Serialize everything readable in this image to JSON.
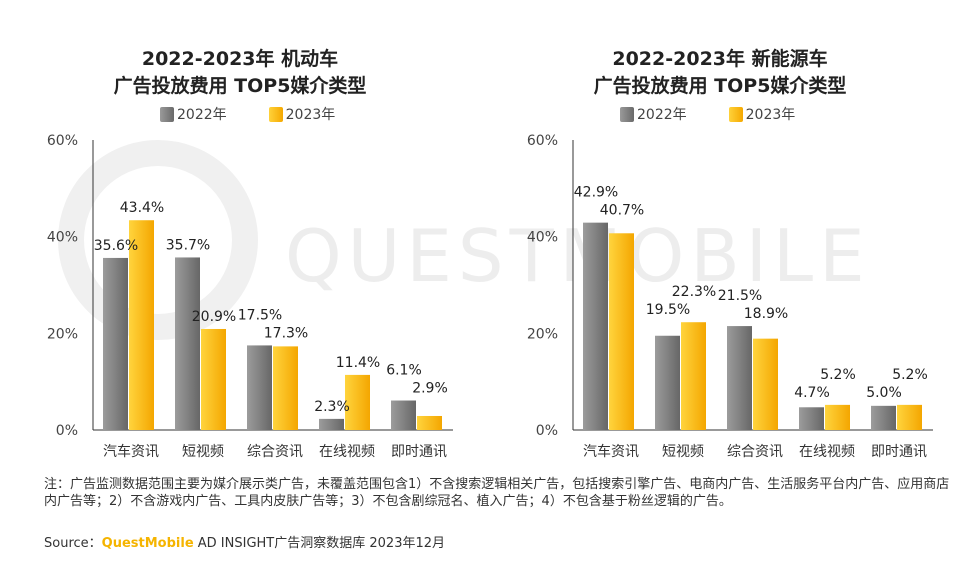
{
  "watermark": "QUESTMOBILE",
  "colors": {
    "y2022": "#7a7a7a",
    "y2023": "#f9b800",
    "axis": "#333333"
  },
  "chart_data": [
    {
      "type": "bar",
      "title_line1": "2022-2023年 机动车",
      "title_line2": "广告投放费用 TOP5媒介类型",
      "categories": [
        "汽车资讯",
        "短视频",
        "综合资讯",
        "在线视频",
        "即时通讯"
      ],
      "series": [
        {
          "name": "2022年",
          "values": [
            35.6,
            35.7,
            17.5,
            2.3,
            6.1
          ]
        },
        {
          "name": "2023年",
          "values": [
            43.4,
            20.9,
            17.3,
            11.4,
            2.9
          ]
        }
      ],
      "y_ticks": [
        "0%",
        "20%",
        "40%",
        "60%"
      ],
      "ylim": [
        0,
        60
      ],
      "unit": "%"
    },
    {
      "type": "bar",
      "title_line1": "2022-2023年 新能源车",
      "title_line2": "广告投放费用 TOP5媒介类型",
      "categories": [
        "汽车资讯",
        "短视频",
        "综合资讯",
        "在线视频",
        "即时通讯"
      ],
      "series": [
        {
          "name": "2022年",
          "values": [
            42.9,
            19.5,
            21.5,
            4.7,
            5.0
          ]
        },
        {
          "name": "2023年",
          "values": [
            40.7,
            22.3,
            18.9,
            5.2,
            5.2
          ]
        }
      ],
      "y_ticks": [
        "0%",
        "20%",
        "40%",
        "60%"
      ],
      "ylim": [
        0,
        60
      ],
      "unit": "%"
    }
  ],
  "footnote": "注：广告监测数据范围主要为媒介展示类广告，未覆盖范围包含1）不含搜索逻辑相关广告，包括搜索引擎广告、电商内广告、生活服务平台内广告、应用商店内广告等；2）不含游戏内广告、工具内皮肤广告等；3）不包含剧综冠名、植入广告；4）不包含基于粉丝逻辑的广告。",
  "source": {
    "label": "Source：",
    "brand": "QuestMobile",
    "text": " AD INSIGHT广告洞察数据库 2023年12月"
  }
}
